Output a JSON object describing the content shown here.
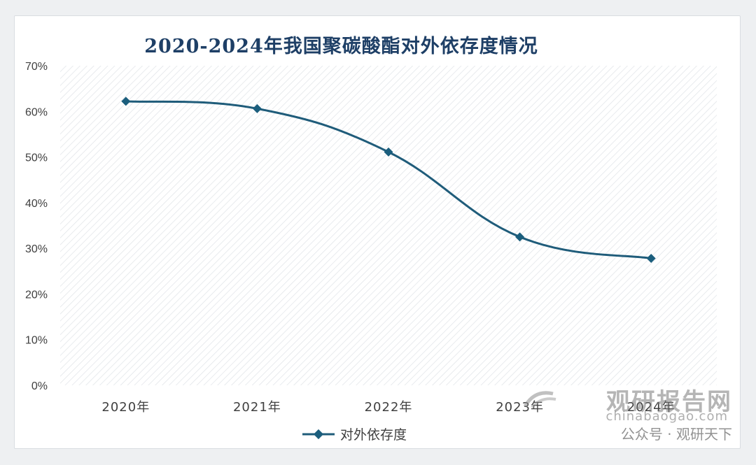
{
  "title": "2020-2024年我国聚碳酸酯对外依存度情况",
  "colors": {
    "line": "#1f5c7a",
    "marker": "#1b5e7d",
    "axis_text": "#404040",
    "title": "#1e3f66"
  },
  "chart_data": {
    "type": "line",
    "title": "2020-2024年我国聚碳酸酯对外依存度情况",
    "categories": [
      "2020年",
      "2021年",
      "2022年",
      "2023年",
      "2024年"
    ],
    "series": [
      {
        "name": "对外依存度",
        "values": [
          62.2,
          60.6,
          51.1,
          32.5,
          27.8
        ]
      }
    ],
    "yunit": "%",
    "ylim": [
      0,
      70
    ],
    "yticks": [
      "0%",
      "10%",
      "20%",
      "30%",
      "40%",
      "50%",
      "60%",
      "70%"
    ],
    "ytick_values": [
      0,
      10,
      20,
      30,
      40,
      50,
      60,
      70
    ],
    "legend": "bottom",
    "grid": false,
    "smooth": true,
    "marker": "diamond"
  },
  "watermark": {
    "brand": "观研报告网",
    "domain": "chinabaogao.com",
    "social": "公众号 · 观研天下"
  }
}
